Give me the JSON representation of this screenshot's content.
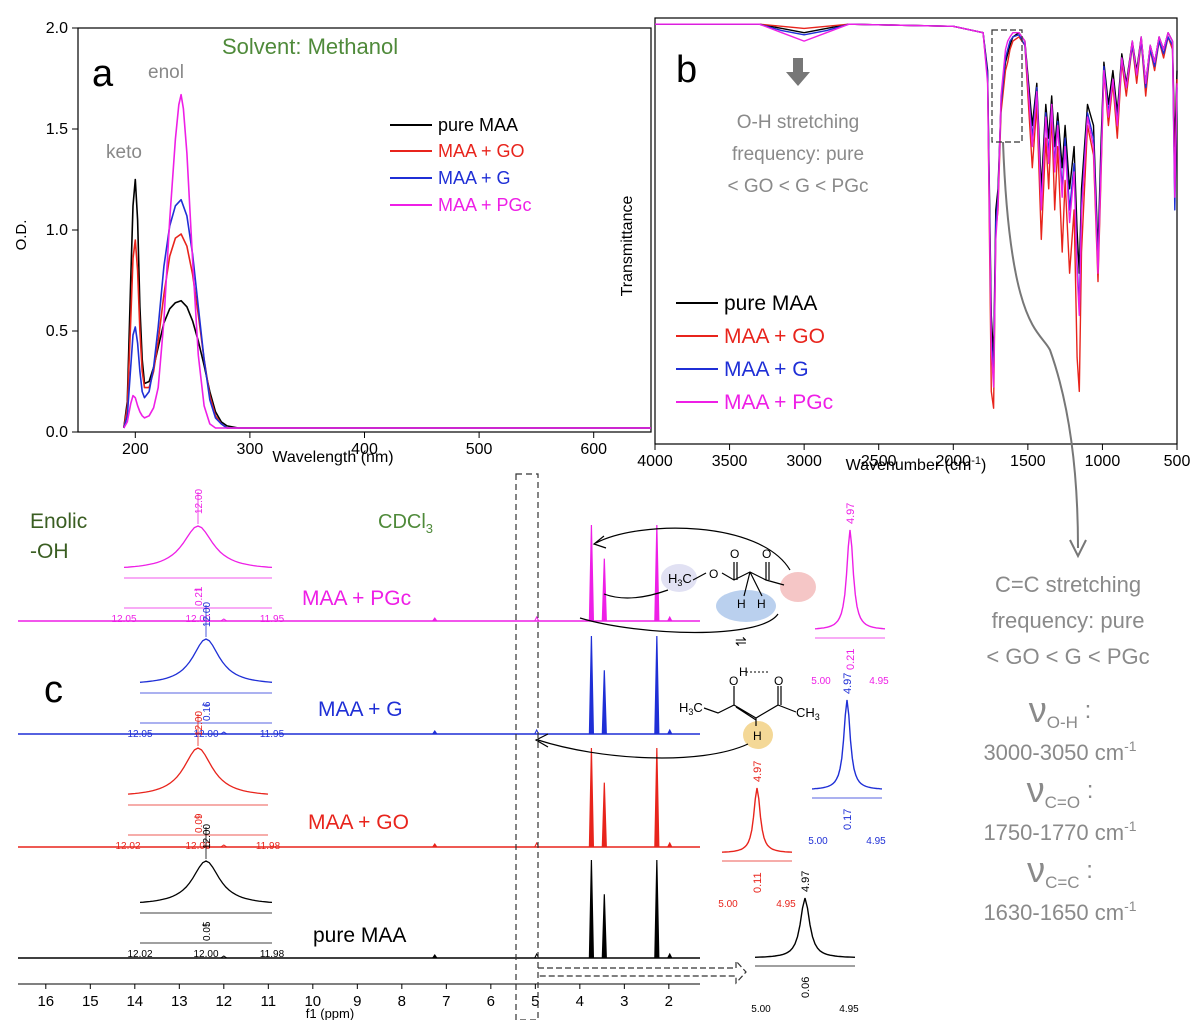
{
  "colors": {
    "pure": "#000000",
    "go": "#e8241c",
    "g": "#1f2fd6",
    "pgc": "#ee1fe6",
    "annotation_gray": "#8a8a8a",
    "solvent_green": "#4f8a3a",
    "enolic_green": "#3a5e22"
  },
  "panel_a": {
    "letter": "a",
    "solvent": "Solvent: Methanol",
    "keto_label": "keto",
    "enol_label": "enol",
    "legend": [
      "pure MAA",
      "MAA + GO",
      "MAA + G",
      "MAA + PGc"
    ]
  },
  "panel_b": {
    "letter": "b",
    "oh_note": [
      "O-H stretching",
      "frequency: pure",
      "< GO < G < PGc"
    ],
    "legend": [
      "pure MAA",
      "MAA + GO",
      "MAA + G",
      "MAA + PGc"
    ]
  },
  "panel_c": {
    "letter": "c",
    "enolic": [
      "Enolic",
      "-OH"
    ],
    "solvent": "CDCl",
    "solvent_sub": "3",
    "rows": [
      {
        "name": "MAA + PGc",
        "peak_label": "12.00",
        "integral": "0.21",
        "ticks": [
          "12.05",
          "12.00",
          "11.95"
        ],
        "ch_label": "4.97",
        "ch_integral": "0.21",
        "ch_ticks": [
          "5.00",
          "4.95"
        ]
      },
      {
        "name": "MAA + G",
        "peak_label": "12.00",
        "integral": "0.16",
        "ticks": [
          "12.05",
          "12.00",
          "11.95"
        ],
        "ch_label": "4.97",
        "ch_integral": "0.17",
        "ch_ticks": [
          "5.00",
          "4.95"
        ]
      },
      {
        "name": "MAA + GO",
        "peak_label": "12.00",
        "integral": "0.09",
        "ticks": [
          "12.02",
          "12.00",
          "11.98"
        ],
        "ch_label": "4.97",
        "ch_integral": "0.11",
        "ch_ticks": [
          "5.00",
          "4.95"
        ]
      },
      {
        "name": "pure MAA",
        "peak_label": "12.00",
        "integral": "0.05",
        "ticks": [
          "12.02",
          "12.00",
          "11.98"
        ],
        "ch_label": "4.97",
        "ch_integral": "0.06",
        "ch_ticks": [
          "5.00",
          "4.95"
        ]
      }
    ],
    "molecule": {
      "h3c": "H",
      "h3c_sub": "3",
      "h3c_c": "C",
      "ch3": "CH",
      "ch3_sub": "3",
      "o": "O",
      "h": "H"
    }
  },
  "side_notes": {
    "cc_note": [
      "C=C stretching",
      "frequency: pure",
      "< GO < G < PGc"
    ],
    "nu": [
      {
        "symbol": "ν",
        "sub": "O-H",
        "range": "3000-3050 cm",
        "sup": "-1"
      },
      {
        "symbol": "ν",
        "sub": "C=O",
        "range": "1750-1770 cm",
        "sup": "-1"
      },
      {
        "symbol": "ν",
        "sub": "C=C",
        "range": "1630-1650 cm",
        "sup": "-1"
      }
    ]
  },
  "chart_data": [
    {
      "panel": "a",
      "type": "line",
      "xlabel": "Wavelength (nm)",
      "ylabel": "O.D.",
      "xlim": [
        150,
        650
      ],
      "ylim": [
        0,
        2.0
      ],
      "xticks": [
        200,
        300,
        400,
        500,
        600
      ],
      "yticks": [
        0.0,
        0.5,
        1.0,
        1.5,
        2.0
      ],
      "series": [
        {
          "name": "pure MAA",
          "x": [
            190,
            193,
            196,
            198,
            200,
            202,
            204,
            206,
            208,
            212,
            216,
            220,
            225,
            230,
            235,
            240,
            245,
            250,
            255,
            260,
            265,
            270,
            275,
            280,
            290,
            300,
            350,
            400,
            500,
            650
          ],
          "values": [
            0.02,
            0.15,
            0.75,
            1.12,
            1.25,
            1.05,
            0.62,
            0.36,
            0.24,
            0.25,
            0.32,
            0.42,
            0.54,
            0.61,
            0.64,
            0.65,
            0.62,
            0.55,
            0.45,
            0.33,
            0.2,
            0.1,
            0.05,
            0.03,
            0.02,
            0.02,
            0.02,
            0.02,
            0.02,
            0.02
          ]
        },
        {
          "name": "MAA + GO",
          "x": [
            190,
            193,
            196,
            198,
            200,
            202,
            204,
            206,
            208,
            212,
            216,
            220,
            225,
            230,
            235,
            240,
            245,
            250,
            255,
            260,
            265,
            270,
            275,
            280,
            290,
            300,
            350,
            400,
            500,
            650
          ],
          "values": [
            0.02,
            0.12,
            0.55,
            0.86,
            0.95,
            0.8,
            0.5,
            0.3,
            0.22,
            0.22,
            0.3,
            0.45,
            0.68,
            0.87,
            0.96,
            0.98,
            0.92,
            0.78,
            0.58,
            0.36,
            0.18,
            0.08,
            0.04,
            0.02,
            0.02,
            0.02,
            0.02,
            0.02,
            0.02,
            0.02
          ]
        },
        {
          "name": "MAA + G",
          "x": [
            190,
            193,
            196,
            198,
            200,
            202,
            204,
            206,
            208,
            212,
            216,
            220,
            225,
            230,
            235,
            240,
            245,
            250,
            255,
            260,
            265,
            270,
            275,
            280,
            290,
            300,
            350,
            400,
            500,
            650
          ],
          "values": [
            0.02,
            0.08,
            0.32,
            0.48,
            0.52,
            0.44,
            0.3,
            0.2,
            0.17,
            0.2,
            0.32,
            0.52,
            0.82,
            1.02,
            1.12,
            1.15,
            1.07,
            0.88,
            0.62,
            0.36,
            0.16,
            0.07,
            0.04,
            0.02,
            0.02,
            0.02,
            0.02,
            0.02,
            0.02,
            0.02
          ]
        },
        {
          "name": "MAA + PGc",
          "x": [
            190,
            193,
            196,
            198,
            200,
            202,
            204,
            206,
            208,
            212,
            216,
            220,
            225,
            230,
            235,
            238,
            240,
            242,
            245,
            250,
            255,
            260,
            265,
            270,
            275,
            280,
            290,
            300,
            350,
            400,
            500,
            650
          ],
          "values": [
            0.02,
            0.05,
            0.14,
            0.18,
            0.17,
            0.13,
            0.1,
            0.08,
            0.07,
            0.08,
            0.12,
            0.22,
            0.55,
            1.05,
            1.45,
            1.62,
            1.67,
            1.6,
            1.38,
            0.85,
            0.38,
            0.13,
            0.04,
            0.02,
            0.02,
            0.02,
            0.02,
            0.02,
            0.02,
            0.02,
            0.02,
            0.02
          ]
        }
      ]
    },
    {
      "panel": "b",
      "type": "line",
      "xlabel": "Wavenumber (cm",
      "xlabel_sup": "-1",
      "xlabel_end": ")",
      "ylabel": "Transmittance",
      "xlim": [
        4000,
        500
      ],
      "xticks": [
        4000,
        3500,
        3000,
        2500,
        2000,
        1500,
        1000,
        500
      ],
      "series": [
        {
          "name": "pure MAA",
          "x": [
            4000,
            3300,
            3150,
            3000,
            2850,
            2700,
            2000,
            1800,
            1770,
            1745,
            1730,
            1715,
            1700,
            1680,
            1650,
            1635,
            1620,
            1600,
            1560,
            1520,
            1470,
            1440,
            1410,
            1380,
            1360,
            1340,
            1320,
            1300,
            1270,
            1250,
            1220,
            1190,
            1170,
            1155,
            1140,
            1100,
            1060,
            1030,
            1010,
            990,
            960,
            930,
            900,
            870,
            840,
            800,
            770,
            740,
            710,
            680,
            650,
            620,
            590,
            560,
            530,
            515,
            500
          ],
          "values": [
            99,
            99,
            98,
            97,
            98,
            99,
            98.5,
            97,
            88,
            30,
            20,
            55,
            60,
            80,
            90,
            92,
            94,
            96,
            97,
            95,
            75,
            85,
            60,
            80,
            72,
            82,
            70,
            78,
            65,
            75,
            60,
            70,
            50,
            40,
            60,
            80,
            75,
            45,
            70,
            90,
            80,
            88,
            78,
            92,
            85,
            95,
            88,
            96,
            85,
            94,
            90,
            96,
            93,
            97,
            95,
            70,
            88
          ]
        },
        {
          "name": "MAA + GO",
          "x": [
            4000,
            3300,
            3150,
            3000,
            2850,
            2700,
            2000,
            1800,
            1770,
            1745,
            1730,
            1715,
            1700,
            1680,
            1650,
            1635,
            1620,
            1600,
            1560,
            1520,
            1470,
            1440,
            1410,
            1380,
            1360,
            1340,
            1320,
            1300,
            1270,
            1250,
            1220,
            1190,
            1170,
            1155,
            1140,
            1100,
            1060,
            1030,
            1010,
            990,
            960,
            930,
            900,
            870,
            840,
            800,
            770,
            740,
            710,
            680,
            650,
            620,
            590,
            560,
            530,
            515,
            500
          ],
          "values": [
            99,
            99,
            98.5,
            98,
            98.5,
            99,
            98.5,
            97,
            86,
            12,
            8,
            50,
            55,
            78,
            88,
            90,
            93,
            95,
            96,
            94,
            65,
            80,
            48,
            72,
            60,
            78,
            55,
            70,
            45,
            62,
            40,
            55,
            20,
            12,
            45,
            75,
            68,
            38,
            62,
            88,
            75,
            85,
            72,
            90,
            82,
            94,
            85,
            95,
            82,
            93,
            88,
            95,
            91,
            96,
            93,
            60,
            86
          ]
        },
        {
          "name": "MAA + G",
          "x": [
            4000,
            3300,
            3150,
            3000,
            2850,
            2700,
            2000,
            1800,
            1770,
            1745,
            1730,
            1715,
            1700,
            1680,
            1650,
            1635,
            1620,
            1600,
            1560,
            1520,
            1470,
            1440,
            1410,
            1380,
            1360,
            1340,
            1320,
            1300,
            1270,
            1250,
            1220,
            1190,
            1170,
            1155,
            1140,
            1100,
            1060,
            1030,
            1010,
            990,
            960,
            930,
            900,
            870,
            840,
            800,
            770,
            740,
            710,
            680,
            650,
            620,
            590,
            560,
            530,
            515,
            500
          ],
          "values": [
            99,
            99,
            97.5,
            96.5,
            97.5,
            99,
            98.5,
            97,
            87,
            25,
            15,
            52,
            58,
            80,
            91,
            93,
            95,
            96,
            96.5,
            94,
            72,
            84,
            56,
            78,
            68,
            80,
            66,
            76,
            60,
            72,
            55,
            66,
            42,
            32,
            56,
            78,
            72,
            42,
            66,
            89,
            78,
            86,
            76,
            91,
            84,
            94,
            87,
            95,
            84,
            93,
            89,
            95,
            92,
            96,
            94,
            55,
            84
          ]
        },
        {
          "name": "MAA + PGc",
          "x": [
            4000,
            3300,
            3150,
            3000,
            2850,
            2700,
            2000,
            1800,
            1770,
            1745,
            1730,
            1715,
            1700,
            1680,
            1650,
            1635,
            1620,
            1600,
            1560,
            1520,
            1470,
            1440,
            1410,
            1380,
            1360,
            1340,
            1320,
            1300,
            1270,
            1250,
            1220,
            1190,
            1170,
            1155,
            1140,
            1100,
            1060,
            1030,
            1010,
            990,
            960,
            930,
            900,
            870,
            840,
            800,
            770,
            740,
            710,
            680,
            650,
            620,
            590,
            560,
            530,
            515,
            500
          ],
          "values": [
            99,
            99,
            97,
            95,
            97,
            99,
            98.5,
            97,
            85,
            22,
            13,
            48,
            56,
            82,
            93,
            95,
            96,
            97,
            97,
            95,
            70,
            83,
            55,
            77,
            66,
            80,
            64,
            75,
            58,
            70,
            52,
            64,
            40,
            30,
            54,
            77,
            70,
            40,
            64,
            88,
            77,
            86,
            75,
            91,
            84,
            95,
            87,
            96,
            85,
            94,
            90,
            96,
            93,
            97,
            95,
            58,
            85
          ]
        }
      ]
    },
    {
      "panel": "c",
      "type": "line",
      "xlabel": "f1 (ppm)",
      "xlim": [
        16.4,
        1.3
      ],
      "xticks": [
        16,
        15,
        14,
        13,
        12,
        11,
        10,
        9,
        8,
        7,
        6,
        5,
        4,
        3,
        2
      ],
      "peaks_ppm": [
        3.74,
        3.45,
        2.27,
        1.98,
        7.26,
        4.97,
        12.0
      ]
    }
  ]
}
